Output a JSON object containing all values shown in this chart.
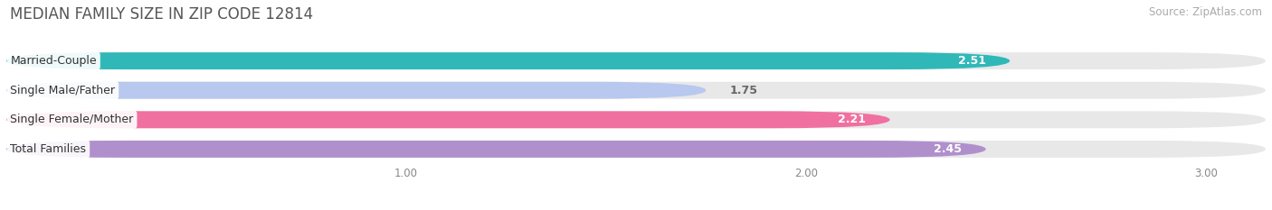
{
  "title": "MEDIAN FAMILY SIZE IN ZIP CODE 12814",
  "source": "Source: ZipAtlas.com",
  "categories": [
    "Married-Couple",
    "Single Male/Father",
    "Single Female/Mother",
    "Total Families"
  ],
  "values": [
    2.51,
    1.75,
    2.21,
    2.45
  ],
  "bar_colors": [
    "#30b8b8",
    "#b8c8ee",
    "#f070a0",
    "#b090cc"
  ],
  "value_label_colors": [
    "#ffffff",
    "#666666",
    "#ffffff",
    "#ffffff"
  ],
  "xlim_min": 0.0,
  "xlim_max": 3.15,
  "xticks": [
    1.0,
    2.0,
    3.0
  ],
  "xtick_labels": [
    "1.00",
    "2.00",
    "3.00"
  ],
  "bar_height": 0.58,
  "background_color": "#ffffff",
  "bar_background_color": "#e8e8e8",
  "title_fontsize": 12,
  "source_fontsize": 8.5,
  "label_fontsize": 9,
  "value_fontsize": 9
}
